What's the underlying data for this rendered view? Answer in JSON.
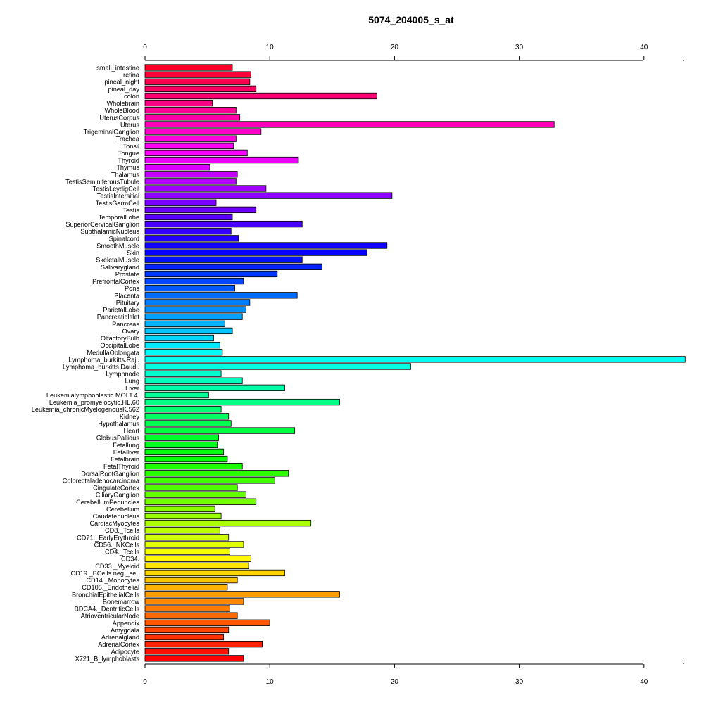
{
  "chart_data": {
    "type": "bar",
    "orientation": "horizontal",
    "title": "5074_204005_s_at",
    "xlabel": "",
    "ylabel": "",
    "xlim": [
      0,
      43.3
    ],
    "x_ticks": [
      0,
      10,
      20,
      30,
      40
    ],
    "x_axis_positions": [
      "top",
      "bottom"
    ],
    "grid": false,
    "legend": "none",
    "bar_colors": "rainbow gradient from red (top) through magenta, blue, cyan, green, yellow, orange back to red (bottom)",
    "categories": [
      "small_intestine",
      "retina",
      "pineal_night",
      "pineal_day",
      "colon",
      "Wholebrain",
      "WholeBlood",
      "UterusCorpus",
      "Uterus",
      "TrigeminalGanglion",
      "Trachea",
      "Tonsil",
      "Tongue",
      "Thyroid",
      "Thymus",
      "Thalamus",
      "TestisSeminiferousTubule",
      "TestisLeydigCell",
      "TestisIntersitial",
      "TestisGermCell",
      "Testis",
      "TemporalLobe",
      "SuperiorCervicalGanglion",
      "SubthalamicNucleus",
      "Spinalcord",
      "SmoothMuscle",
      "Skin",
      "SkeletalMuscle",
      "Salivarygland",
      "Prostate",
      "PrefrontalCortex",
      "Pons",
      "Placenta",
      "Pituitary",
      "ParietalLobe",
      "PancreaticIslet",
      "Pancreas",
      "Ovary",
      "OlfactoryBulb",
      "OccipitalLobe",
      "MedullaOblongata",
      "Lymphoma_burkitts.Raji.",
      "Lymphoma_burkitts.Daudi.",
      "Lymphnode",
      "Lung",
      "Liver",
      "Leukemialymphoblastic.MOLT.4.",
      "Leukemia_promyelocytic.HL.60",
      "Leukemia_chronicMyelogenousK.562",
      "Kidney",
      "Hypothalamus",
      "Heart",
      "GlobusPallidus",
      "Fetallung",
      "Fetalliver",
      "Fetalbrain",
      "FetalThyroid",
      "DorsalRootGanglion",
      "Colorectaladenocarcinoma",
      "CingulateCortex",
      "CiliaryGanglion",
      "CerebellumPeduncles",
      "Cerebellum",
      "Caudatenucleus",
      "CardiacMyocytes",
      "CD8._Tcells",
      "CD71._EarlyErythroid",
      "CD56._NKCells",
      "CD4._Tcells",
      "CD34.",
      "CD33._Myeloid",
      "CD19._BCells.neg._sel.",
      "CD14._Monocytes",
      "CD105._Endothelial",
      "BronchialEpithelialCells",
      "Bonemarrow",
      "BDCA4._DentriticCells",
      "AtrioventricularNode",
      "Appendix",
      "Amygdala",
      "Adrenalgland",
      "AdrenalCortex",
      "Adipocyte",
      "X721_B_lymphoblasts"
    ],
    "values": [
      7.0,
      8.5,
      8.4,
      8.9,
      18.6,
      5.4,
      7.3,
      7.6,
      32.8,
      9.3,
      7.3,
      7.1,
      8.2,
      12.3,
      5.2,
      7.4,
      7.3,
      9.7,
      19.8,
      5.7,
      8.9,
      7.0,
      12.6,
      6.9,
      7.5,
      19.4,
      17.8,
      12.6,
      14.2,
      10.6,
      7.9,
      7.2,
      12.2,
      8.4,
      8.1,
      7.8,
      6.4,
      7.0,
      5.5,
      6.0,
      6.2,
      43.3,
      21.3,
      6.1,
      7.8,
      11.2,
      5.1,
      15.6,
      6.1,
      6.7,
      6.9,
      12.0,
      5.9,
      5.8,
      6.3,
      6.6,
      7.8,
      11.5,
      10.4,
      7.4,
      8.1,
      8.9,
      5.6,
      6.1,
      13.3,
      6.0,
      6.7,
      7.9,
      6.8,
      8.5,
      8.3,
      11.2,
      7.4,
      6.6,
      15.6,
      7.9,
      6.8,
      7.4,
      10.0,
      6.7,
      6.3,
      9.4,
      6.7,
      7.9
    ]
  }
}
